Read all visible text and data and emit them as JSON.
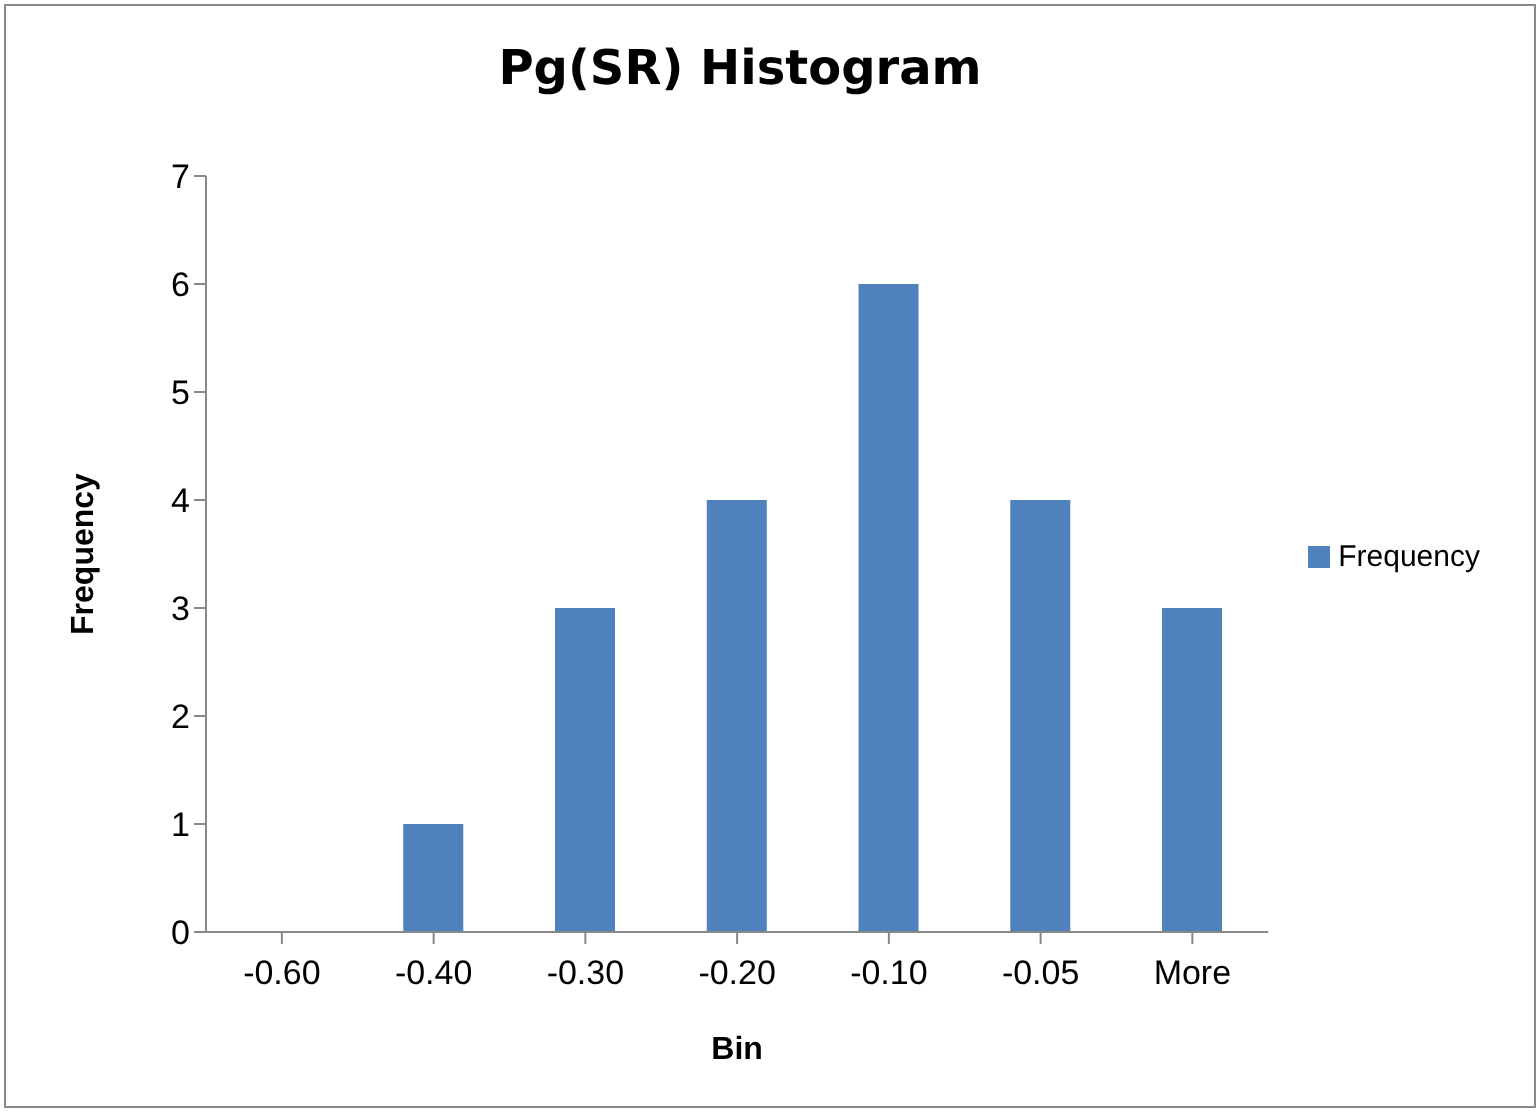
{
  "chart_data": {
    "type": "bar",
    "title": "Pg(SR) Histogram",
    "xlabel": "Bin",
    "ylabel": "Frequency",
    "categories": [
      "-0.60",
      "-0.40",
      "-0.30",
      "-0.20",
      "-0.10",
      "-0.05",
      "More"
    ],
    "series": [
      {
        "name": "Frequency",
        "color": "#4f81bd",
        "values": [
          0,
          1,
          3,
          4,
          6,
          4,
          3
        ]
      }
    ],
    "ylim": [
      0,
      7
    ],
    "yticks": [
      0,
      1,
      2,
      3,
      4,
      5,
      6,
      7
    ],
    "grid": false,
    "legend": "right"
  }
}
